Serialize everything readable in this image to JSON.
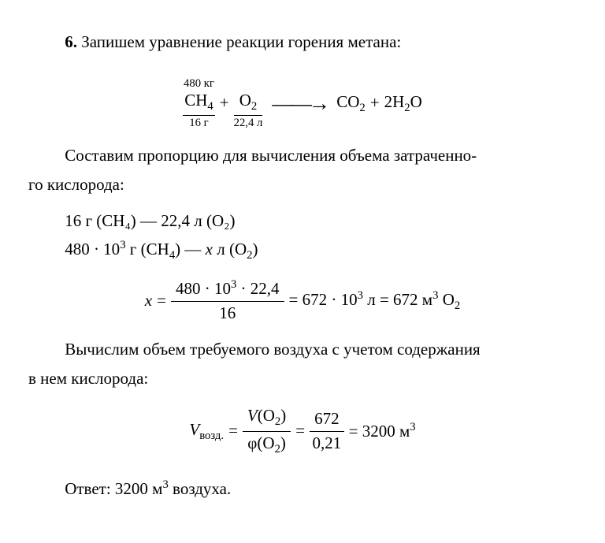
{
  "p1_lead": "6.",
  "p1_text": " Запишем уравнение реакции горения метана:",
  "eq1": {
    "ch4_top": "480 кг",
    "ch4": "CH",
    "ch4_sub": "4",
    "ch4_bot": "16 г",
    "o2": "O",
    "o2_sub": "2",
    "o2_bot": "22,4 л",
    "co2": "CO",
    "co2_sub": "2",
    "h2o_coef": "2H",
    "h2o_sub": "2",
    "h2o_o": "O"
  },
  "p2a": "Составим пропорцию для вычисления объема затраченно-",
  "p2b": "го кислорода:",
  "prop1": "16 г (CH₄) — 22,4 л (O₂)",
  "prop2": "480 · 10³ г (CH₄) — x л (O₂)",
  "eq2": {
    "lhs": "x =",
    "num": "480 · 10³ · 22,4",
    "den": "16",
    "rhs": "= 672 · 10³ л = 672 м³ O₂"
  },
  "p3a": "Вычислим объем требуемого воздуха с учетом содержания",
  "p3b": "в нем кислорода:",
  "eq3": {
    "lhs_v": "V",
    "lhs_sub": "возд.",
    "f1_num": "V(O₂)",
    "f1_den": "φ(O₂)",
    "f2_num": "672",
    "f2_den": "0,21",
    "rhs": "= 3200 м³"
  },
  "answer": "Ответ: 3200 м³ воздуха."
}
